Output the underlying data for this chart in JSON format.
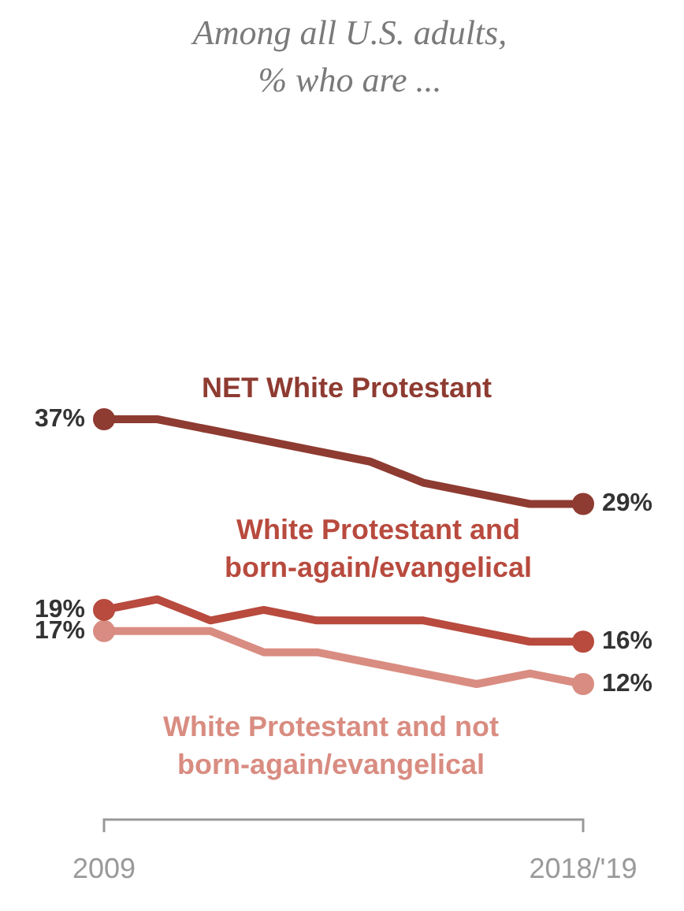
{
  "chart_data": {
    "type": "line",
    "title": "Among all U.S. adults, % who are ...",
    "categories": [
      "2009",
      null,
      null,
      null,
      null,
      null,
      null,
      null,
      null,
      "2018/'19"
    ],
    "series": [
      {
        "name": "NET White Protestant",
        "color": "#8e3b31",
        "values": [
          37,
          37,
          36,
          35,
          34,
          33,
          31,
          30,
          29,
          29
        ],
        "value_labels": [
          "37%",
          null,
          null,
          null,
          null,
          null,
          null,
          null,
          null,
          "29%"
        ]
      },
      {
        "name": "White Protestant and born-again/evangelical",
        "color": "#b84a3e",
        "values": [
          19,
          20,
          18,
          19,
          18,
          18,
          18,
          17,
          16,
          16
        ],
        "value_labels": [
          "19%",
          null,
          null,
          null,
          null,
          null,
          null,
          null,
          null,
          "16%"
        ]
      },
      {
        "name": "White Protestant and not born-again/evangelical",
        "color": "#d98c81",
        "values": [
          17,
          17,
          17,
          15,
          15,
          14,
          13,
          12,
          13,
          12
        ],
        "value_labels": [
          "17%",
          null,
          null,
          null,
          null,
          null,
          null,
          null,
          null,
          "12%"
        ]
      }
    ],
    "line_style": "solid",
    "legend": false
  }
}
